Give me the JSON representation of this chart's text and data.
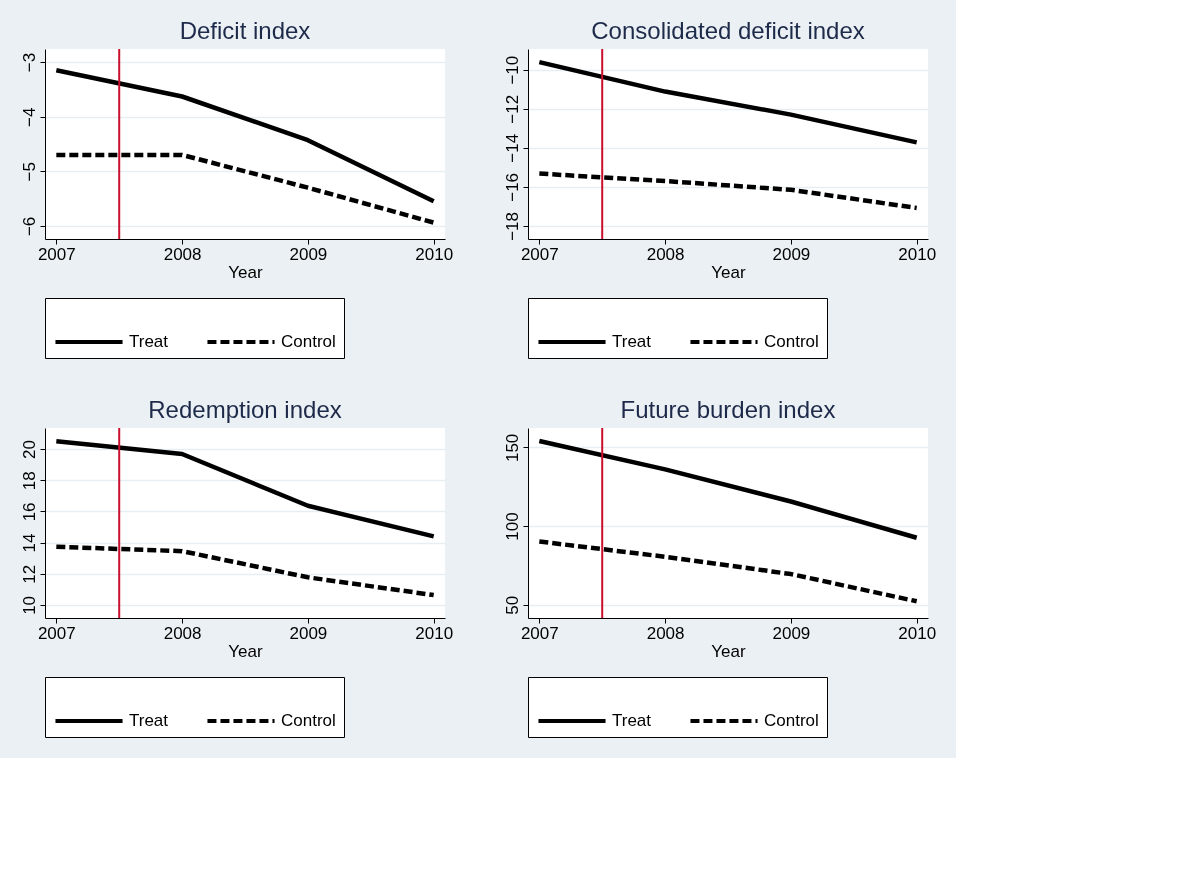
{
  "chart_data": [
    {
      "type": "line",
      "title": "Deficit index",
      "xlabel": "Year",
      "x": [
        2007,
        2008,
        2009,
        2010
      ],
      "xlim": [
        2006.91,
        2010.09
      ],
      "xticks": [
        2007,
        2008,
        2009,
        2010
      ],
      "ylim": [
        -6.24,
        -2.76
      ],
      "yticks": [
        -6,
        -5,
        -4,
        -3
      ],
      "grid": "y",
      "legend": "bottom",
      "series": [
        {
          "name": "Treat",
          "color": "#000000",
          "line_style": "solid",
          "values": [
            -3.15,
            -3.63,
            -4.43,
            -5.55
          ]
        },
        {
          "name": "Control",
          "color": "#000000",
          "line_style": "dashed",
          "values": [
            -4.7,
            -4.7,
            -5.3,
            -5.94
          ]
        }
      ],
      "ref_lines": [
        {
          "axis": "x",
          "value": 2007.5,
          "color": "#c8102e"
        }
      ]
    },
    {
      "type": "line",
      "title": "Consolidated deficit index",
      "xlabel": "Year",
      "x": [
        2007,
        2008,
        2009,
        2010
      ],
      "xlim": [
        2006.91,
        2010.09
      ],
      "xticks": [
        2007,
        2008,
        2009,
        2010
      ],
      "ylim": [
        -18.67,
        -8.94
      ],
      "yticks": [
        -18,
        -16,
        -14,
        -12,
        -10
      ],
      "grid": "y",
      "legend": "bottom",
      "series": [
        {
          "name": "Treat",
          "color": "#000000",
          "line_style": "solid",
          "values": [
            -9.61,
            -11.12,
            -12.3,
            -13.72
          ]
        },
        {
          "name": "Control",
          "color": "#000000",
          "line_style": "dashed",
          "values": [
            -15.32,
            -15.7,
            -16.15,
            -17.08
          ]
        }
      ],
      "ref_lines": [
        {
          "axis": "x",
          "value": 2007.5,
          "color": "#c8102e"
        }
      ]
    },
    {
      "type": "line",
      "title": "Redemption index",
      "xlabel": "Year",
      "x": [
        2007,
        2008,
        2009,
        2010
      ],
      "xlim": [
        2006.91,
        2010.09
      ],
      "xticks": [
        2007,
        2008,
        2009,
        2010
      ],
      "ylim": [
        9.16,
        21.35
      ],
      "yticks": [
        10,
        12,
        14,
        16,
        18,
        20
      ],
      "grid": "y",
      "legend": "bottom",
      "series": [
        {
          "name": "Treat",
          "color": "#000000",
          "line_style": "solid",
          "values": [
            20.5,
            19.68,
            16.36,
            14.4
          ]
        },
        {
          "name": "Control",
          "color": "#000000",
          "line_style": "dashed",
          "values": [
            13.73,
            13.45,
            11.77,
            10.63
          ]
        }
      ],
      "ref_lines": [
        {
          "axis": "x",
          "value": 2007.5,
          "color": "#c8102e"
        }
      ]
    },
    {
      "type": "line",
      "title": "Future burden index",
      "xlabel": "Year",
      "x": [
        2007,
        2008,
        2009,
        2010
      ],
      "xlim": [
        2006.91,
        2010.09
      ],
      "xticks": [
        2007,
        2008,
        2009,
        2010
      ],
      "ylim": [
        41.6,
        162.3
      ],
      "yticks": [
        50,
        100,
        150
      ],
      "grid": "y",
      "legend": "bottom",
      "series": [
        {
          "name": "Treat",
          "color": "#000000",
          "line_style": "solid",
          "values": [
            154,
            136,
            115.6,
            92.6
          ]
        },
        {
          "name": "Control",
          "color": "#000000",
          "line_style": "dashed",
          "values": [
            90.2,
            80.5,
            69.5,
            52.2
          ]
        }
      ],
      "ref_lines": [
        {
          "axis": "x",
          "value": 2007.5,
          "color": "#c8102e"
        }
      ]
    }
  ]
}
